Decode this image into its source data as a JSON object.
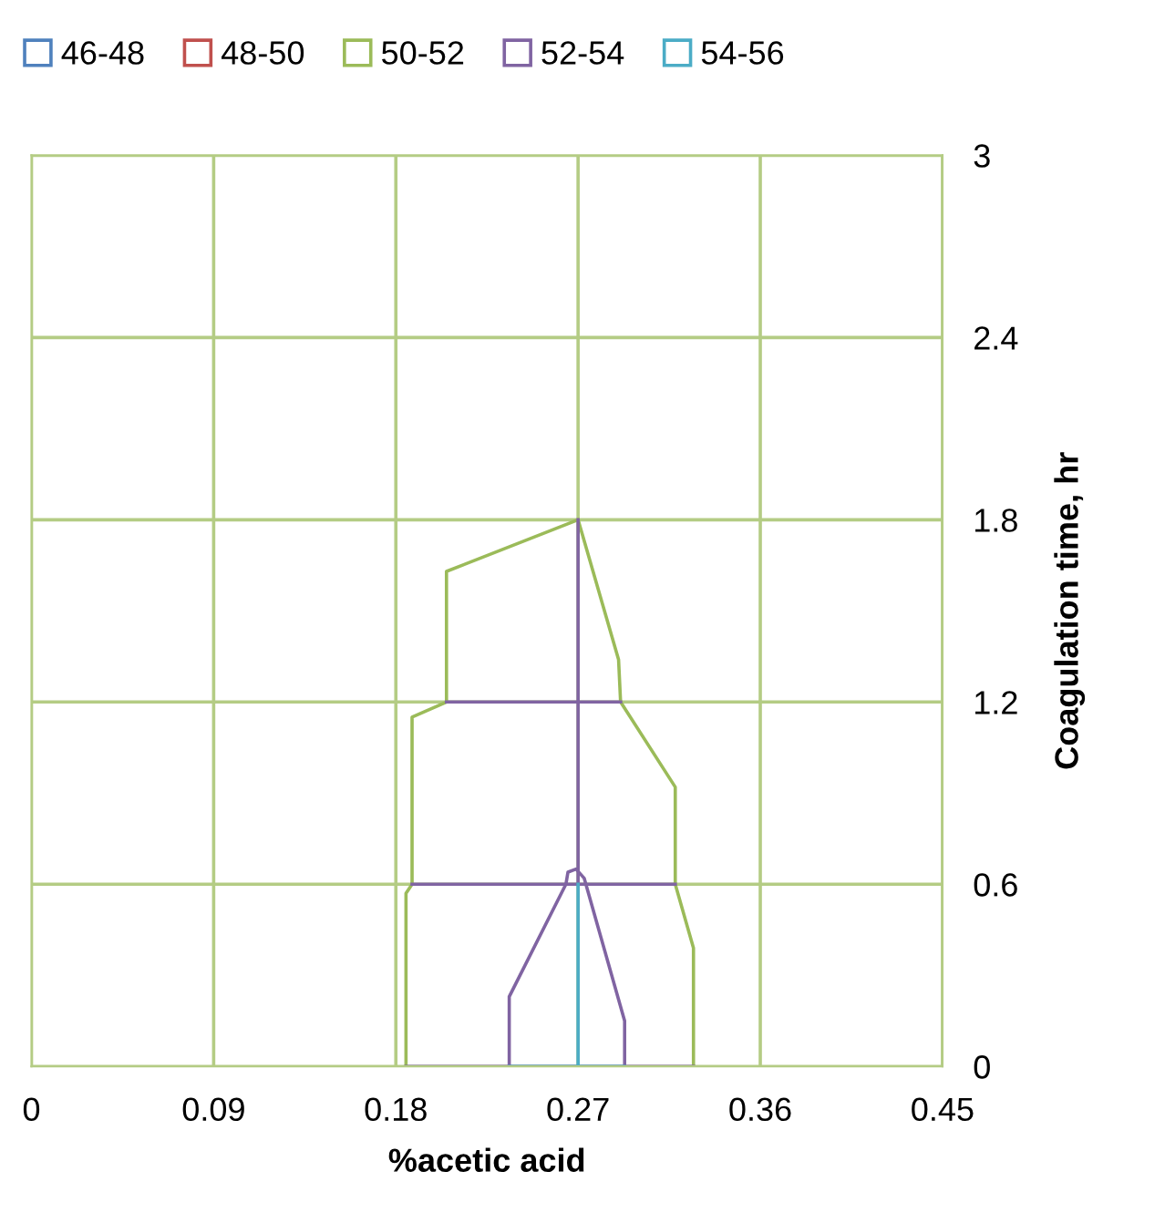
{
  "chart_data": {
    "type": "line",
    "xlabel": "%acetic acid",
    "ylabel": "Coagulation time, hr",
    "xlim": [
      0,
      0.45
    ],
    "xticks": [
      0,
      0.09,
      0.18,
      0.27,
      0.36,
      0.45
    ],
    "ylim": [
      0,
      3
    ],
    "yticks": [
      0,
      0.6,
      1.2,
      1.8,
      2.4,
      3
    ],
    "grid": true,
    "legend": "top left",
    "marker": "none",
    "series": [
      {
        "name": "46-48",
        "color": "#4f81bd"
      },
      {
        "name": "48-50",
        "color": "#c0504d"
      },
      {
        "name": "50-52",
        "color": "#9bbb59",
        "x": [
          0.185,
          0.185,
          0.188,
          0.188,
          0.205,
          0.205,
          0.27,
          0.29,
          0.291,
          0.318,
          0.318,
          0.327,
          0.327
        ],
        "values": [
          0,
          0.57,
          0.6,
          1.15,
          1.2,
          1.63,
          1.8,
          1.34,
          1.2,
          0.92,
          0.6,
          0.39,
          0
        ]
      },
      {
        "name": "52-54",
        "color": "#8064a2",
        "x": [
          0.185,
          0.327
        ],
        "values": [
          0,
          0
        ]
      },
      {
        "color": "#8064a2",
        "x": [
          0.188,
          0.318
        ],
        "values": [
          0.6,
          0.6
        ]
      },
      {
        "color": "#8064a2",
        "x": [
          0.205,
          0.291
        ],
        "values": [
          1.2,
          1.2
        ]
      },
      {
        "color": "#8064a2",
        "x": [
          0.27,
          0.27
        ],
        "values": [
          0.6,
          1.8
        ]
      },
      {
        "color": "#8064a2",
        "x": [
          0.236,
          0.236,
          0.264,
          0.265,
          0.269,
          0.273,
          0.293,
          0.293
        ],
        "values": [
          0,
          0.23,
          0.6,
          0.64,
          0.65,
          0.62,
          0.15,
          0
        ]
      },
      {
        "name": "54-56",
        "color": "#4bacc6",
        "x": [
          0.236,
          0.293
        ],
        "values": [
          0,
          0
        ]
      },
      {
        "color": "#4bacc6",
        "x": [
          0.27,
          0.27
        ],
        "values": [
          0,
          0.6
        ]
      }
    ]
  }
}
